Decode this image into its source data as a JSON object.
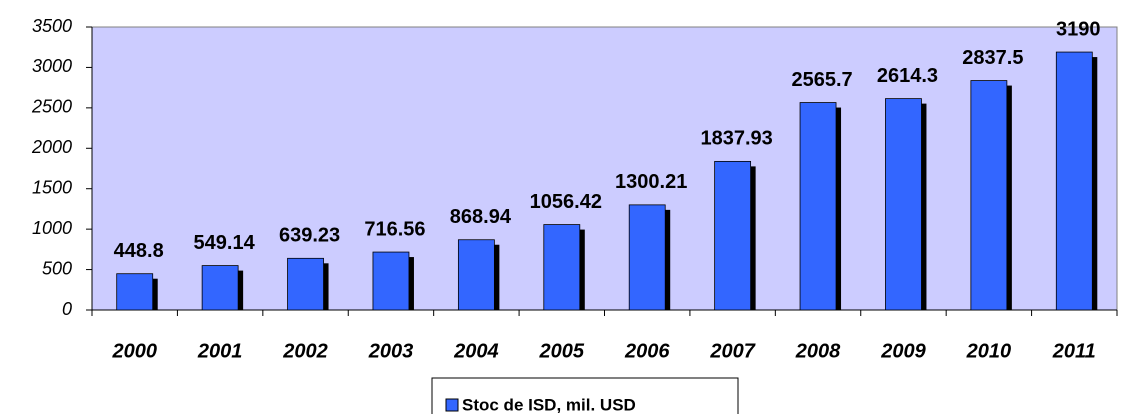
{
  "chart_data": {
    "type": "bar",
    "categories": [
      "2000",
      "2001",
      "2002",
      "2003",
      "2004",
      "2005",
      "2006",
      "2007",
      "2008",
      "2009",
      "2010",
      "2011"
    ],
    "series": [
      {
        "name": "Stoc de ISD, mil. USD",
        "color": "#3366ff",
        "values": [
          448.8,
          549.14,
          639.23,
          716.56,
          868.94,
          1056.42,
          1300.21,
          1837.93,
          2565.7,
          2614.3,
          2837.5,
          3190
        ]
      }
    ],
    "ylim": [
      0,
      3500
    ],
    "yticks": [
      0,
      500,
      1000,
      1500,
      2000,
      2500,
      3000,
      3500
    ],
    "legend": "bottom"
  }
}
